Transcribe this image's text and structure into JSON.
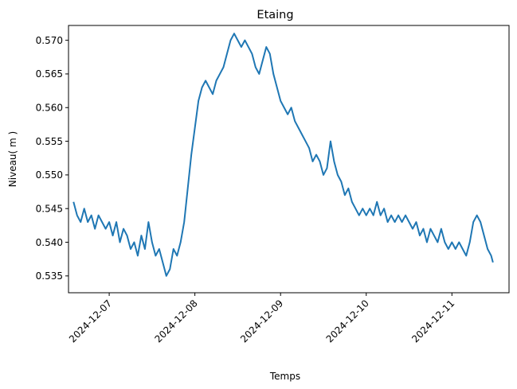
{
  "chart_data": {
    "type": "line",
    "title": "Etaing",
    "xlabel": "Temps",
    "ylabel": "Niveau( m )",
    "x_ticks": [
      "2024-12-07",
      "2024-12-08",
      "2024-12-09",
      "2024-12-10",
      "2024-12-11"
    ],
    "y_ticks": [
      "0.535",
      "0.540",
      "0.545",
      "0.550",
      "0.555",
      "0.560",
      "0.565",
      "0.570"
    ],
    "xlim": [
      "2024-12-06 12:36",
      "2024-12-11 16:00"
    ],
    "ylim": [
      0.5325,
      0.5722
    ],
    "grid": false,
    "series": [
      {
        "color": "#1f77b4",
        "points": [
          [
            "2024-12-06 14:00",
            0.546
          ],
          [
            "2024-12-06 15:00",
            0.544
          ],
          [
            "2024-12-06 16:00",
            0.543
          ],
          [
            "2024-12-06 17:00",
            0.545
          ],
          [
            "2024-12-06 18:00",
            0.543
          ],
          [
            "2024-12-06 19:00",
            0.544
          ],
          [
            "2024-12-06 20:00",
            0.542
          ],
          [
            "2024-12-06 21:00",
            0.544
          ],
          [
            "2024-12-06 22:00",
            0.543
          ],
          [
            "2024-12-06 23:00",
            0.542
          ],
          [
            "2024-12-07 00:00",
            0.543
          ],
          [
            "2024-12-07 01:00",
            0.541
          ],
          [
            "2024-12-07 02:00",
            0.543
          ],
          [
            "2024-12-07 03:00",
            0.54
          ],
          [
            "2024-12-07 04:00",
            0.542
          ],
          [
            "2024-12-07 05:00",
            0.541
          ],
          [
            "2024-12-07 06:00",
            0.539
          ],
          [
            "2024-12-07 07:00",
            0.54
          ],
          [
            "2024-12-07 08:00",
            0.538
          ],
          [
            "2024-12-07 09:00",
            0.541
          ],
          [
            "2024-12-07 10:00",
            0.539
          ],
          [
            "2024-12-07 11:00",
            0.543
          ],
          [
            "2024-12-07 12:00",
            0.54
          ],
          [
            "2024-12-07 13:00",
            0.538
          ],
          [
            "2024-12-07 14:00",
            0.539
          ],
          [
            "2024-12-07 15:00",
            0.537
          ],
          [
            "2024-12-07 16:00",
            0.535
          ],
          [
            "2024-12-07 17:00",
            0.536
          ],
          [
            "2024-12-07 18:00",
            0.539
          ],
          [
            "2024-12-07 19:00",
            0.538
          ],
          [
            "2024-12-07 20:00",
            0.54
          ],
          [
            "2024-12-07 21:00",
            0.543
          ],
          [
            "2024-12-07 22:00",
            0.548
          ],
          [
            "2024-12-07 23:00",
            0.553
          ],
          [
            "2024-12-08 00:00",
            0.557
          ],
          [
            "2024-12-08 01:00",
            0.561
          ],
          [
            "2024-12-08 02:00",
            0.563
          ],
          [
            "2024-12-08 03:00",
            0.564
          ],
          [
            "2024-12-08 04:00",
            0.563
          ],
          [
            "2024-12-08 05:00",
            0.562
          ],
          [
            "2024-12-08 06:00",
            0.564
          ],
          [
            "2024-12-08 07:00",
            0.565
          ],
          [
            "2024-12-08 08:00",
            0.566
          ],
          [
            "2024-12-08 09:00",
            0.568
          ],
          [
            "2024-12-08 10:00",
            0.57
          ],
          [
            "2024-12-08 11:00",
            0.571
          ],
          [
            "2024-12-08 12:00",
            0.57
          ],
          [
            "2024-12-08 13:00",
            0.569
          ],
          [
            "2024-12-08 14:00",
            0.57
          ],
          [
            "2024-12-08 15:00",
            0.569
          ],
          [
            "2024-12-08 16:00",
            0.568
          ],
          [
            "2024-12-08 17:00",
            0.566
          ],
          [
            "2024-12-08 18:00",
            0.565
          ],
          [
            "2024-12-08 19:00",
            0.567
          ],
          [
            "2024-12-08 20:00",
            0.569
          ],
          [
            "2024-12-08 21:00",
            0.568
          ],
          [
            "2024-12-08 22:00",
            0.565
          ],
          [
            "2024-12-08 23:00",
            0.563
          ],
          [
            "2024-12-09 00:00",
            0.561
          ],
          [
            "2024-12-09 01:00",
            0.56
          ],
          [
            "2024-12-09 02:00",
            0.559
          ],
          [
            "2024-12-09 03:00",
            0.56
          ],
          [
            "2024-12-09 04:00",
            0.558
          ],
          [
            "2024-12-09 05:00",
            0.557
          ],
          [
            "2024-12-09 06:00",
            0.556
          ],
          [
            "2024-12-09 07:00",
            0.555
          ],
          [
            "2024-12-09 08:00",
            0.554
          ],
          [
            "2024-12-09 09:00",
            0.552
          ],
          [
            "2024-12-09 10:00",
            0.553
          ],
          [
            "2024-12-09 11:00",
            0.552
          ],
          [
            "2024-12-09 12:00",
            0.55
          ],
          [
            "2024-12-09 13:00",
            0.551
          ],
          [
            "2024-12-09 14:00",
            0.555
          ],
          [
            "2024-12-09 15:00",
            0.552
          ],
          [
            "2024-12-09 16:00",
            0.55
          ],
          [
            "2024-12-09 17:00",
            0.549
          ],
          [
            "2024-12-09 18:00",
            0.547
          ],
          [
            "2024-12-09 19:00",
            0.548
          ],
          [
            "2024-12-09 20:00",
            0.546
          ],
          [
            "2024-12-09 21:00",
            0.545
          ],
          [
            "2024-12-09 22:00",
            0.544
          ],
          [
            "2024-12-09 23:00",
            0.545
          ],
          [
            "2024-12-10 00:00",
            0.544
          ],
          [
            "2024-12-10 01:00",
            0.545
          ],
          [
            "2024-12-10 02:00",
            0.544
          ],
          [
            "2024-12-10 03:00",
            0.546
          ],
          [
            "2024-12-10 04:00",
            0.544
          ],
          [
            "2024-12-10 05:00",
            0.545
          ],
          [
            "2024-12-10 06:00",
            0.543
          ],
          [
            "2024-12-10 07:00",
            0.544
          ],
          [
            "2024-12-10 08:00",
            0.543
          ],
          [
            "2024-12-10 09:00",
            0.544
          ],
          [
            "2024-12-10 10:00",
            0.543
          ],
          [
            "2024-12-10 11:00",
            0.544
          ],
          [
            "2024-12-10 12:00",
            0.543
          ],
          [
            "2024-12-10 13:00",
            0.542
          ],
          [
            "2024-12-10 14:00",
            0.543
          ],
          [
            "2024-12-10 15:00",
            0.541
          ],
          [
            "2024-12-10 16:00",
            0.542
          ],
          [
            "2024-12-10 17:00",
            0.54
          ],
          [
            "2024-12-10 18:00",
            0.542
          ],
          [
            "2024-12-10 19:00",
            0.541
          ],
          [
            "2024-12-10 20:00",
            0.54
          ],
          [
            "2024-12-10 21:00",
            0.542
          ],
          [
            "2024-12-10 22:00",
            0.54
          ],
          [
            "2024-12-10 23:00",
            0.539
          ],
          [
            "2024-12-11 00:00",
            0.54
          ],
          [
            "2024-12-11 01:00",
            0.539
          ],
          [
            "2024-12-11 02:00",
            0.54
          ],
          [
            "2024-12-11 03:00",
            0.539
          ],
          [
            "2024-12-11 04:00",
            0.538
          ],
          [
            "2024-12-11 05:00",
            0.54
          ],
          [
            "2024-12-11 06:00",
            0.543
          ],
          [
            "2024-12-11 07:00",
            0.544
          ],
          [
            "2024-12-11 08:00",
            0.543
          ],
          [
            "2024-12-11 09:00",
            0.541
          ],
          [
            "2024-12-11 10:00",
            0.539
          ],
          [
            "2024-12-11 11:00",
            0.538
          ],
          [
            "2024-12-11 11:30",
            0.537
          ]
        ]
      }
    ]
  }
}
